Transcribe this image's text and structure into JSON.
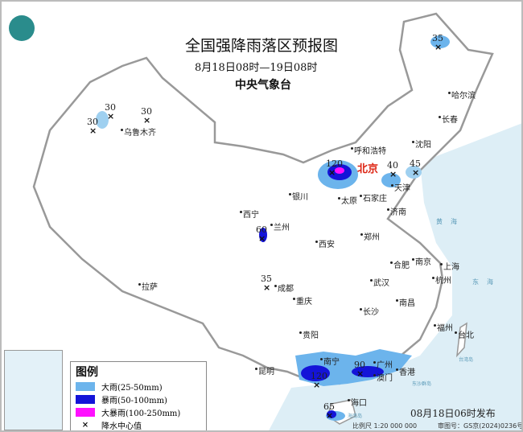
{
  "header": {
    "title": "全国强降雨落区预报图",
    "subtitle": "8月18日08时—19日08时",
    "issuer": "中央气象台"
  },
  "logo": "cma-logo",
  "colors": {
    "heavy_rain": "#6cb4ec",
    "rainstorm": "#1414d8",
    "heavy_rainstorm": "#ff10ff",
    "sea": "#ddeef6",
    "border": "#999999"
  },
  "cities": [
    "哈尔滨",
    "长春",
    "沈阳",
    "乌鲁木齐",
    "呼和浩特",
    "北京",
    "天津",
    "银川",
    "太原",
    "石家庄",
    "济南",
    "西宁",
    "兰州",
    "郑州",
    "西安",
    "合肥",
    "南京",
    "上海",
    "杭州",
    "拉萨",
    "成都",
    "武汉",
    "重庆",
    "长沙",
    "南昌",
    "福州",
    "台北",
    "贵阳",
    "昆明",
    "南宁",
    "广州",
    "澳门",
    "香港",
    "海口"
  ],
  "seas": [
    "黄海",
    "东海"
  ],
  "islands": [
    "台湾岛",
    "东沙群岛",
    "海南岛"
  ],
  "precip_centers": [
    "35",
    "30",
    "30",
    "30",
    "120",
    "40",
    "45",
    "60",
    "35",
    "120",
    "90",
    "65"
  ],
  "legend": {
    "title": "图例",
    "items": [
      {
        "label": "大雨(25-50mm)",
        "color": "#6cb4ec"
      },
      {
        "label": "暴雨(50-100mm)",
        "color": "#1414d8"
      },
      {
        "label": "大暴雨(100-250mm)",
        "color": "#ff10ff"
      },
      {
        "label": "降水中心值",
        "symbol": "×"
      }
    ]
  },
  "footer": {
    "issued": "08月18日06时发布",
    "scale": "比例尺 1:20 000 000",
    "review": "审图号：GS京(2024)0236号"
  }
}
